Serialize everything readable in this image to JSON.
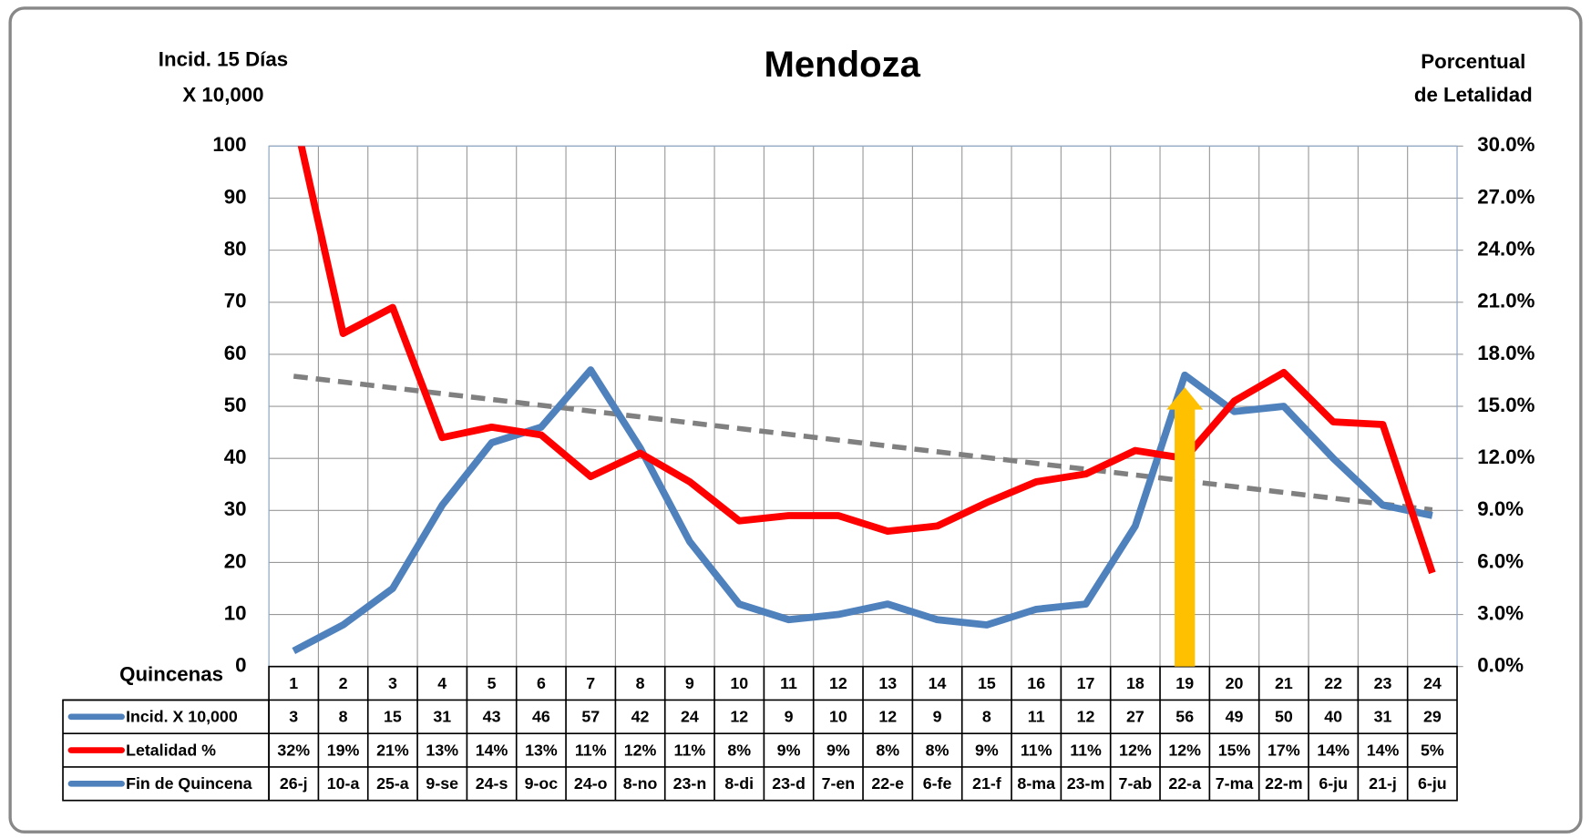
{
  "chart_data": {
    "type": "line",
    "title": "Mendoza",
    "y_label": [
      "Incid. 15 Días",
      "X 10,000"
    ],
    "y2_label": [
      "Porcentual",
      "de Letalidad"
    ],
    "category_label": "Quincenas",
    "categories": [
      "1",
      "2",
      "3",
      "4",
      "5",
      "6",
      "7",
      "8",
      "9",
      "10",
      "11",
      "12",
      "13",
      "14",
      "15",
      "16",
      "17",
      "18",
      "19",
      "20",
      "21",
      "22",
      "23",
      "24"
    ],
    "series": [
      {
        "name": "Incid. X 10,000",
        "color": "#4f81bd",
        "values": [
          3,
          8,
          15,
          31,
          43,
          46,
          57,
          42,
          24,
          12,
          9,
          10,
          12,
          9,
          8,
          11,
          12,
          27,
          56,
          49,
          50,
          40,
          31,
          29
        ]
      },
      {
        "name": "Letalidad %",
        "color": "#ff0000",
        "axis": "y2",
        "trendline": true,
        "values": [
          32,
          19.2,
          20.7,
          13.2,
          13.8,
          13.35,
          10.95,
          12.3,
          10.65,
          8.4,
          8.7,
          8.7,
          7.8,
          8.1,
          9.45,
          10.65,
          11.1,
          12.45,
          12.0,
          15.3,
          16.95,
          14.1,
          13.95,
          5.4
        ],
        "value_labels": [
          "32%",
          "19%",
          "21%",
          "13%",
          "14%",
          "13%",
          "11%",
          "12%",
          "11%",
          "8%",
          "9%",
          "9%",
          "8%",
          "8%",
          "9%",
          "11%",
          "11%",
          "12%",
          "12%",
          "15%",
          "17%",
          "14%",
          "14%",
          "5%"
        ]
      }
    ],
    "date_row": {
      "name": "Fin de Quincena",
      "color": "#4f81bd",
      "labels": [
        "26-j",
        "10-a",
        "25-a",
        "9-se",
        "24-s",
        "9-oc",
        "24-o",
        "8-no",
        "23-n",
        "8-di",
        "23-d",
        "7-en",
        "22-e",
        "6-fe",
        "21-f",
        "8-ma",
        "23-m",
        "7-ab",
        "22-a",
        "7-ma",
        "22-m",
        "6-ju",
        "21-j",
        "6-ju"
      ]
    },
    "trendline_color": "#808080",
    "highlight": {
      "category_index": 18,
      "color": "#ffc000"
    },
    "ylim": [
      0,
      100
    ],
    "yticks": [
      0,
      10,
      20,
      30,
      40,
      50,
      60,
      70,
      80,
      90,
      100
    ],
    "y2lim": [
      0,
      30
    ],
    "y2ticks": [
      {
        "value": 0,
        "label": "0.0%"
      },
      {
        "value": 3,
        "label": "3.0%"
      },
      {
        "value": 6,
        "label": "6.0%"
      },
      {
        "value": 9,
        "label": "9.0%"
      },
      {
        "value": 12,
        "label": "12.0%"
      },
      {
        "value": 15,
        "label": "15.0%"
      },
      {
        "value": 18,
        "label": "18.0%"
      },
      {
        "value": 21,
        "label": "21.0%"
      },
      {
        "value": 24,
        "label": "24.0%"
      },
      {
        "value": 27,
        "label": "27.0%"
      },
      {
        "value": 30,
        "label": "30.0%"
      }
    ],
    "grid": true
  }
}
